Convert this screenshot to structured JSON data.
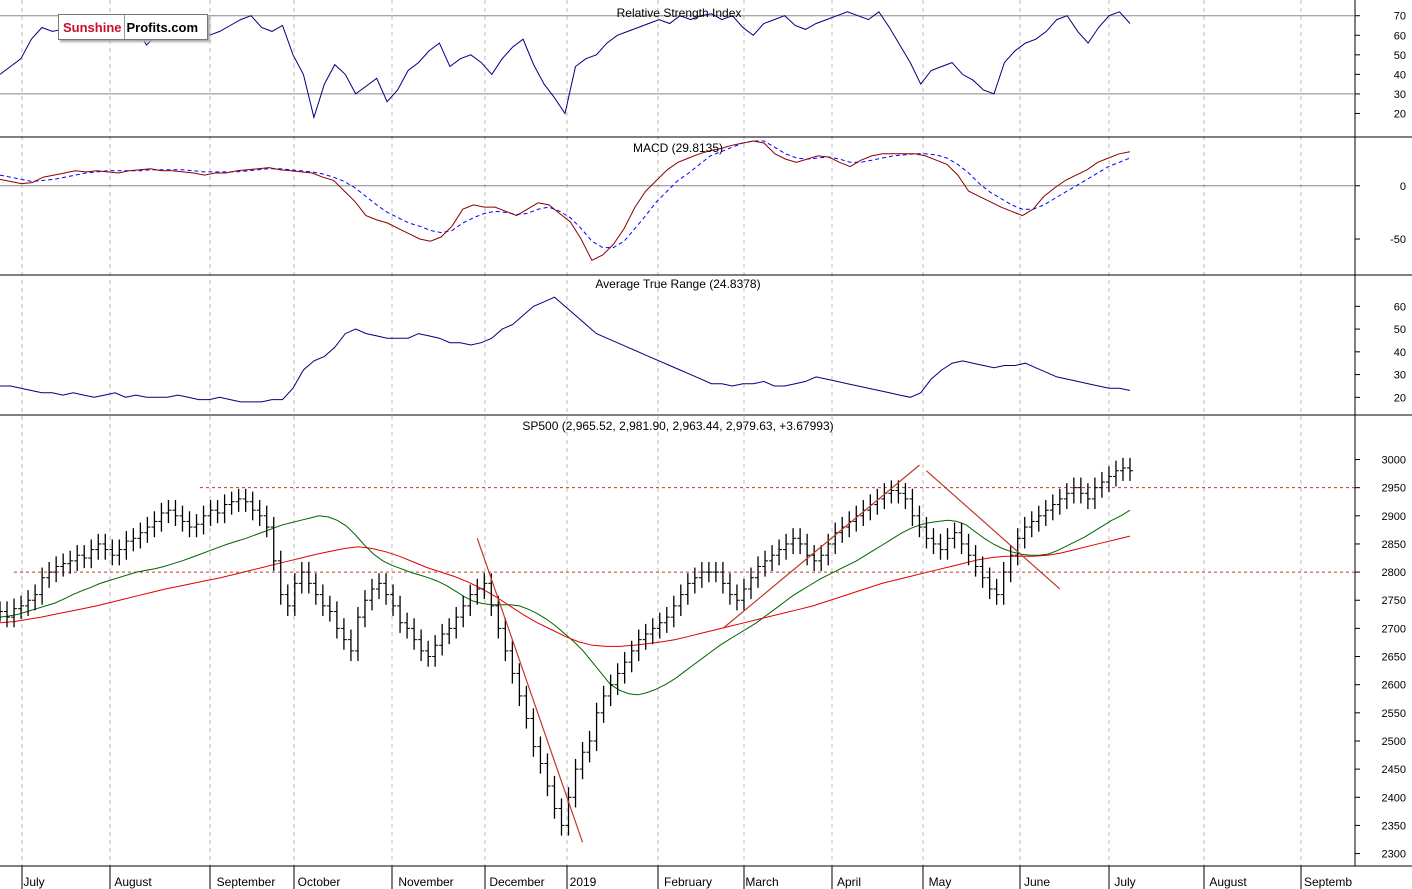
{
  "logo": {
    "part1": "Sunshine",
    "part2": "Profits.com"
  },
  "colors": {
    "price": "#000000",
    "rsi": "#000080",
    "macd": "#8b0000",
    "signal": "#0000ff",
    "atr": "#000080",
    "ma_short": "#006400",
    "ma_long": "#e00000",
    "resistance": "#c0392b",
    "trendline": "#c0392b",
    "grid": "#bbbbbb"
  },
  "months": [
    "July",
    "August",
    "September",
    "October",
    "November",
    "December",
    "2019",
    "February",
    "March",
    "April",
    "May",
    "June",
    "July",
    "August",
    "Septemb"
  ],
  "chart_data": [
    {
      "type": "line",
      "title": "Relative Strength Index",
      "ylim": [
        10,
        76
      ],
      "ticks": [
        20,
        30,
        40,
        50,
        60,
        70
      ],
      "reference_lines": [
        30,
        70
      ],
      "series": [
        {
          "values": [
            40,
            44,
            48,
            58,
            64,
            62,
            63,
            60,
            62,
            68,
            60,
            58,
            60,
            64,
            55,
            60,
            62,
            66,
            64,
            68,
            60,
            62,
            65,
            68,
            70,
            64,
            62,
            65,
            50,
            40,
            18,
            35,
            45,
            40,
            30,
            34,
            38,
            26,
            32,
            42,
            46,
            52,
            56,
            44,
            48,
            50,
            46,
            40,
            48,
            54,
            58,
            45,
            35,
            28,
            20,
            44,
            48,
            50,
            56,
            60,
            62,
            64,
            66,
            68,
            66,
            70,
            68,
            70,
            71,
            68,
            70,
            64,
            60,
            66,
            68,
            70,
            65,
            63,
            66,
            68,
            70,
            72,
            70,
            68,
            72,
            64,
            55,
            46,
            35,
            42,
            44,
            46,
            40,
            37,
            32,
            30,
            46,
            52,
            56,
            58,
            62,
            68,
            70,
            62,
            56,
            64,
            70,
            72,
            66
          ]
        }
      ]
    },
    {
      "type": "line",
      "title": "MACD (29.8135)",
      "ylim": [
        -80,
        42
      ],
      "ticks": [
        -50,
        0
      ],
      "series": [
        {
          "values": [
            6,
            4,
            2,
            3,
            8,
            10,
            12,
            14,
            13,
            14,
            13,
            12,
            14,
            15,
            16,
            14,
            14,
            13,
            12,
            10,
            12,
            12,
            14,
            15,
            16,
            17,
            15,
            14,
            13,
            12,
            8,
            5,
            -5,
            -15,
            -28,
            -32,
            -35,
            -40,
            -45,
            -50,
            -52,
            -48,
            -38,
            -22,
            -18,
            -20,
            -20,
            -24,
            -28,
            -22,
            -16,
            -18,
            -26,
            -34,
            -50,
            -70,
            -65,
            -55,
            -40,
            -20,
            -5,
            5,
            15,
            22,
            26,
            30,
            33,
            35,
            38,
            40,
            42,
            40,
            30,
            25,
            22,
            25,
            28,
            27,
            22,
            18,
            24,
            28,
            30,
            30,
            30,
            30,
            28,
            24,
            20,
            10,
            -5,
            -10,
            -15,
            -20,
            -24,
            -28,
            -22,
            -10,
            -2,
            5,
            10,
            15,
            22,
            26,
            30,
            32
          ]
        },
        {
          "values": [
            10,
            8,
            6,
            4,
            5,
            6,
            8,
            10,
            12,
            13,
            14,
            14,
            14,
            14,
            15,
            15,
            15,
            15,
            14,
            13,
            13,
            13,
            13,
            14,
            15,
            16,
            16,
            15,
            14,
            13,
            11,
            8,
            4,
            -2,
            -10,
            -18,
            -25,
            -30,
            -35,
            -38,
            -42,
            -44,
            -42,
            -35,
            -30,
            -26,
            -24,
            -25,
            -27,
            -26,
            -22,
            -20,
            -24,
            -30,
            -40,
            -52,
            -58,
            -58,
            -52,
            -40,
            -28,
            -15,
            -5,
            5,
            12,
            20,
            28,
            32,
            36,
            40,
            42,
            42,
            36,
            30,
            26,
            25,
            26,
            27,
            25,
            22,
            22,
            24,
            26,
            28,
            29,
            30,
            30,
            29,
            26,
            20,
            12,
            2,
            -6,
            -12,
            -18,
            -22,
            -22,
            -18,
            -12,
            -6,
            0,
            6,
            12,
            18,
            22,
            26
          ]
        }
      ]
    },
    {
      "type": "line",
      "title": "Average True Range (24.8378)",
      "ylim": [
        14,
        72
      ],
      "ticks": [
        20,
        30,
        40,
        50,
        60
      ],
      "series": [
        {
          "values": [
            25,
            25,
            24,
            23,
            22,
            22,
            21,
            22,
            21,
            20,
            21,
            22,
            20,
            21,
            20,
            20,
            20,
            21,
            20,
            19,
            19,
            20,
            19,
            18,
            18,
            18,
            19,
            19,
            24,
            32,
            36,
            38,
            42,
            48,
            50,
            48,
            47,
            46,
            46,
            46,
            48,
            47,
            46,
            44,
            44,
            43,
            44,
            46,
            50,
            52,
            56,
            60,
            62,
            64,
            60,
            56,
            52,
            48,
            46,
            44,
            42,
            40,
            38,
            36,
            34,
            32,
            30,
            28,
            26,
            26,
            25,
            26,
            26,
            27,
            25,
            25,
            26,
            27,
            29,
            28,
            27,
            26,
            25,
            24,
            23,
            22,
            21,
            20,
            22,
            28,
            32,
            35,
            36,
            35,
            34,
            33,
            34,
            34,
            35,
            33,
            31,
            29,
            28,
            27,
            26,
            25,
            24,
            24,
            23
          ]
        }
      ]
    },
    {
      "type": "bar",
      "title": "SP500 (2,965.52, 2,981.90, 2,963.44, 2,979.63, +3.67993)",
      "ylim": [
        2285,
        3040
      ],
      "ticks": [
        2300,
        2350,
        2400,
        2450,
        2500,
        2550,
        2600,
        2650,
        2700,
        2750,
        2800,
        2850,
        2900,
        2950,
        3000
      ],
      "resistance_levels": [
        2950,
        2800
      ],
      "closes": [
        2730,
        2720,
        2735,
        2740,
        2750,
        2760,
        2790,
        2800,
        2810,
        2815,
        2820,
        2830,
        2825,
        2840,
        2850,
        2840,
        2830,
        2840,
        2855,
        2860,
        2870,
        2880,
        2890,
        2905,
        2910,
        2900,
        2890,
        2880,
        2885,
        2900,
        2910,
        2905,
        2920,
        2925,
        2930,
        2925,
        2910,
        2900,
        2880,
        2820,
        2760,
        2740,
        2780,
        2800,
        2780,
        2760,
        2740,
        2730,
        2700,
        2680,
        2660,
        2720,
        2750,
        2770,
        2780,
        2760,
        2740,
        2710,
        2700,
        2680,
        2660,
        2650,
        2670,
        2690,
        2700,
        2720,
        2740,
        2760,
        2770,
        2780,
        2740,
        2700,
        2660,
        2620,
        2580,
        2540,
        2490,
        2460,
        2420,
        2380,
        2350,
        2400,
        2450,
        2480,
        2500,
        2550,
        2580,
        2600,
        2620,
        2640,
        2660,
        2680,
        2690,
        2700,
        2710,
        2720,
        2740,
        2760,
        2780,
        2790,
        2800,
        2800,
        2800,
        2780,
        2760,
        2750,
        2770,
        2790,
        2810,
        2820,
        2830,
        2840,
        2850,
        2860,
        2850,
        2830,
        2820,
        2830,
        2850,
        2870,
        2880,
        2890,
        2900,
        2910,
        2920,
        2930,
        2940,
        2945,
        2940,
        2930,
        2900,
        2880,
        2860,
        2850,
        2840,
        2860,
        2870,
        2850,
        2830,
        2810,
        2790,
        2770,
        2760,
        2800,
        2830,
        2860,
        2880,
        2890,
        2900,
        2910,
        2920,
        2930,
        2940,
        2950,
        2940,
        2930,
        2950,
        2960,
        2970,
        2980,
        2985,
        2980
      ],
      "series": [
        {
          "values": [
            2720,
            2722,
            2725,
            2730,
            2735,
            2740,
            2745,
            2752,
            2760,
            2767,
            2773,
            2780,
            2785,
            2790,
            2795,
            2800,
            2803,
            2806,
            2810,
            2815,
            2820,
            2826,
            2832,
            2838,
            2844,
            2850,
            2855,
            2860,
            2866,
            2872,
            2878,
            2884,
            2888,
            2892,
            2896,
            2900,
            2898,
            2892,
            2882,
            2866,
            2848,
            2832,
            2820,
            2812,
            2806,
            2800,
            2795,
            2790,
            2784,
            2776,
            2766,
            2756,
            2748,
            2744,
            2742,
            2742,
            2742,
            2740,
            2734,
            2726,
            2716,
            2704,
            2690,
            2676,
            2660,
            2640,
            2620,
            2600,
            2590,
            2584,
            2582,
            2586,
            2592,
            2600,
            2610,
            2622,
            2634,
            2646,
            2658,
            2670,
            2680,
            2690,
            2700,
            2710,
            2722,
            2734,
            2746,
            2758,
            2768,
            2778,
            2788,
            2796,
            2804,
            2812,
            2820,
            2830,
            2840,
            2850,
            2860,
            2870,
            2878,
            2884,
            2888,
            2890,
            2892,
            2890,
            2884,
            2872,
            2860,
            2850,
            2842,
            2836,
            2832,
            2830,
            2830,
            2832,
            2838,
            2846,
            2854,
            2862,
            2872,
            2882,
            2892,
            2900,
            2910
          ]
        },
        {
          "values": [
            2710,
            2712,
            2716,
            2720,
            2725,
            2730,
            2735,
            2740,
            2746,
            2752,
            2758,
            2764,
            2770,
            2775,
            2780,
            2785,
            2790,
            2796,
            2802,
            2808,
            2814,
            2820,
            2826,
            2832,
            2837,
            2842,
            2845,
            2842,
            2836,
            2828,
            2818,
            2808,
            2800,
            2792,
            2782,
            2770,
            2756,
            2740,
            2724,
            2710,
            2698,
            2686,
            2676,
            2670,
            2668,
            2668,
            2670,
            2673,
            2676,
            2680,
            2686,
            2692,
            2698,
            2704,
            2710,
            2716,
            2722,
            2728,
            2734,
            2740,
            2748,
            2756,
            2764,
            2772,
            2780,
            2786,
            2792,
            2798,
            2804,
            2810,
            2816,
            2822,
            2826,
            2828,
            2828,
            2828,
            2830,
            2834,
            2840,
            2846,
            2852,
            2858,
            2864
          ]
        }
      ]
    }
  ]
}
